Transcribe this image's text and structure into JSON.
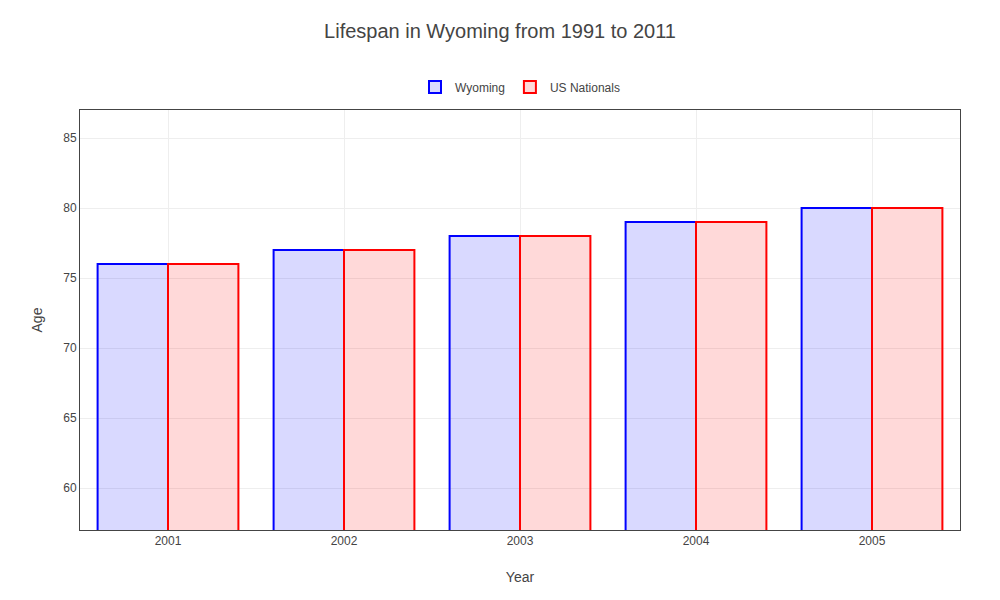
{
  "chart_data": {
    "type": "bar",
    "title": "Lifespan in Wyoming from 1991 to 2011",
    "xlabel": "Year",
    "ylabel": "Age",
    "categories": [
      "2001",
      "2002",
      "2003",
      "2004",
      "2005"
    ],
    "series": [
      {
        "name": "Wyoming",
        "color": "#0000ff",
        "values": [
          76,
          77,
          78,
          79,
          80
        ]
      },
      {
        "name": "US Nationals",
        "color": "#ff0000",
        "values": [
          76,
          77,
          78,
          79,
          80
        ]
      }
    ],
    "ylim": [
      57,
      87
    ],
    "yticks": [
      60,
      65,
      70,
      75,
      80,
      85
    ],
    "grid": true,
    "legend": "upper center"
  }
}
